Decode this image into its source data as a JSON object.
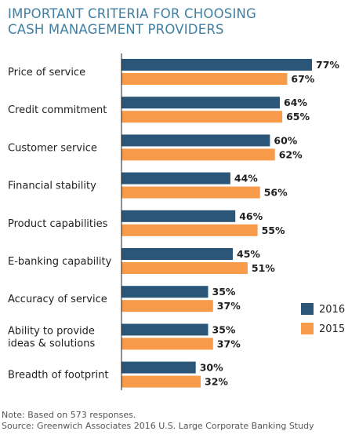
{
  "title": {
    "line1": "IMPORTANT CRITERIA FOR CHOOSING",
    "line2": "CASH MANAGEMENT PROVIDERS"
  },
  "colors": {
    "title": "#3f7fa3",
    "series_2016": "#2b5677",
    "series_2015": "#f79a4a",
    "axis": "#1f1f1f"
  },
  "chart_data": {
    "type": "bar",
    "orientation": "horizontal",
    "title": "IMPORTANT CRITERIA FOR CHOOSING CASH MANAGEMENT PROVIDERS",
    "categories": [
      [
        "Price of service"
      ],
      [
        "Credit commitment"
      ],
      [
        "Customer service"
      ],
      [
        "Financial stability"
      ],
      [
        "Product capabilities"
      ],
      [
        "E-banking capability"
      ],
      [
        "Accuracy of service"
      ],
      [
        "Ability to provide",
        "ideas & solutions"
      ],
      [
        "Breadth of footprint"
      ]
    ],
    "series": [
      {
        "name": "2016",
        "color": "#2b5677",
        "values": [
          77,
          64,
          60,
          44,
          46,
          45,
          35,
          35,
          30
        ],
        "labels": [
          "77%",
          "64%",
          "60%",
          "44%",
          "46%",
          "45%",
          "35%",
          "35%",
          "30%"
        ]
      },
      {
        "name": "2015",
        "color": "#f79a4a",
        "values": [
          67,
          65,
          62,
          56,
          55,
          51,
          37,
          37,
          32
        ],
        "labels": [
          "67%",
          "65%",
          "62%",
          "56%",
          "55%",
          "51%",
          "37%",
          "37%",
          "32%"
        ]
      }
    ],
    "xlim": [
      0,
      77
    ],
    "legend": {
      "position": "right",
      "entries": [
        "2016",
        "2015"
      ]
    },
    "grid": false
  },
  "notes": {
    "note": "Note: Based on 573 responses.",
    "source": "Source: Greenwich Associates 2016 U.S. Large Corporate Banking Study"
  }
}
